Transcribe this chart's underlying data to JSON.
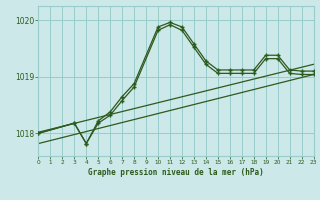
{
  "title": "Graphe pression niveau de la mer (hPa)",
  "background_color": "#cce8e8",
  "grid_color": "#99cccc",
  "line_color": "#2d5a1e",
  "x_min": 0,
  "x_max": 23,
  "y_min": 1017.6,
  "y_max": 1020.25,
  "yticks": [
    1018,
    1019,
    1020
  ],
  "xticks": [
    0,
    1,
    2,
    3,
    4,
    5,
    6,
    7,
    8,
    9,
    10,
    11,
    12,
    13,
    14,
    15,
    16,
    17,
    18,
    19,
    20,
    21,
    22,
    23
  ],
  "series1_x": [
    0,
    3,
    4,
    5,
    6,
    7,
    8,
    10,
    11,
    12,
    13,
    14,
    15,
    16,
    17,
    18,
    19,
    20,
    21,
    22,
    23
  ],
  "series1_y": [
    1018.0,
    1018.18,
    1017.82,
    1018.22,
    1018.38,
    1018.65,
    1018.88,
    1019.88,
    1019.96,
    1019.88,
    1019.58,
    1019.28,
    1019.12,
    1019.12,
    1019.12,
    1019.12,
    1019.38,
    1019.38,
    1019.12,
    1019.1,
    1019.1
  ],
  "series2_x": [
    0,
    3,
    4,
    5,
    6,
    7,
    8,
    10,
    11,
    12,
    13,
    14,
    15,
    16,
    17,
    18,
    19,
    20,
    21,
    22,
    23
  ],
  "series2_y": [
    1018.0,
    1018.18,
    1017.82,
    1018.18,
    1018.32,
    1018.58,
    1018.82,
    1019.82,
    1019.92,
    1019.82,
    1019.52,
    1019.22,
    1019.06,
    1019.06,
    1019.06,
    1019.06,
    1019.32,
    1019.32,
    1019.06,
    1019.04,
    1019.04
  ],
  "line1_x": [
    0,
    23
  ],
  "line1_y": [
    1018.02,
    1019.22
  ],
  "line2_x": [
    0,
    23
  ],
  "line2_y": [
    1017.82,
    1019.04
  ]
}
